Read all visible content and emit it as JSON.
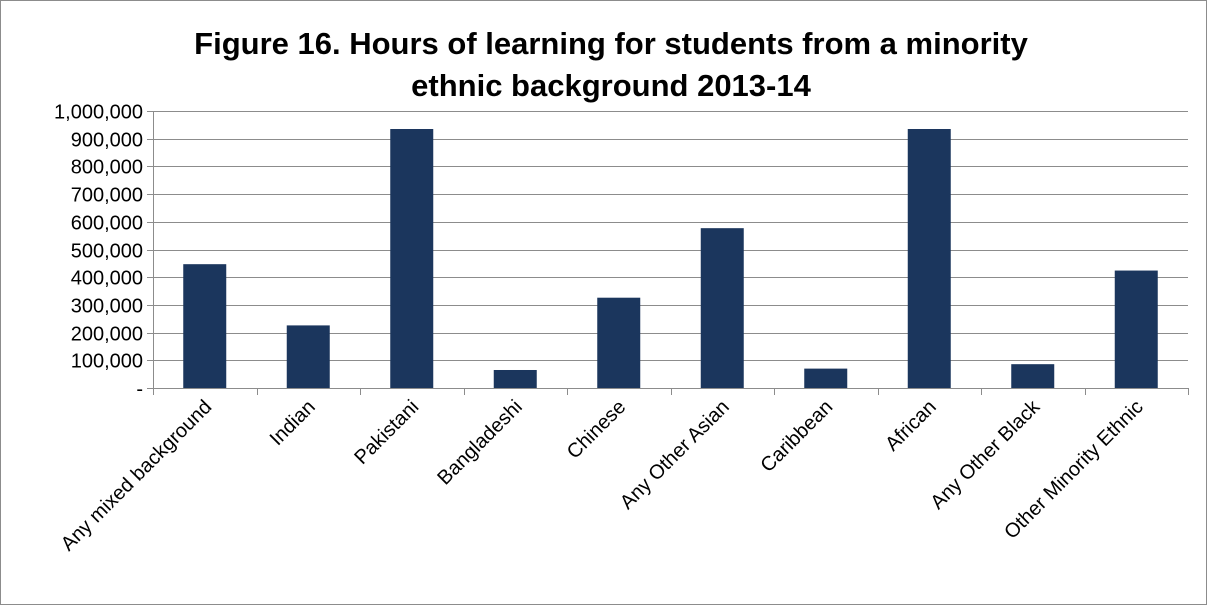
{
  "chart_data": {
    "type": "bar",
    "title_lines": [
      "Figure 16. Hours of learning for students from a minority",
      "ethnic background 2013-14"
    ],
    "categories": [
      "Any mixed background",
      "Indian",
      "Pakistani",
      "Bangladeshi",
      "Chinese",
      "Any Other Asian",
      "Caribbean",
      "African",
      "Any Other Black",
      "Other Minority Ethnic"
    ],
    "values": [
      447000,
      226000,
      935000,
      65000,
      326000,
      577000,
      70000,
      935000,
      86000,
      424000
    ],
    "ylim": [
      0,
      1000000
    ],
    "yticks": [
      0,
      100000,
      200000,
      300000,
      400000,
      500000,
      600000,
      700000,
      800000,
      900000,
      1000000
    ],
    "ytick_labels": [
      "-",
      "100,000",
      "200,000",
      "300,000",
      "400,000",
      "500,000",
      "600,000",
      "700,000",
      "800,000",
      "900,000",
      "1,000,000"
    ],
    "bar_color": "#1b365d",
    "grid_color": "#8c8c8c",
    "grid": true,
    "legend": "none"
  }
}
